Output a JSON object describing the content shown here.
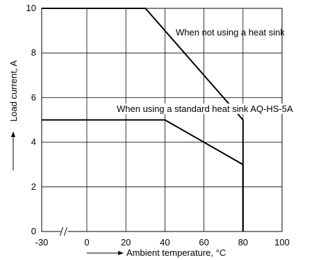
{
  "chart_data": {
    "type": "line",
    "xlabel": "Ambient temperature, °C",
    "ylabel": "Load current, A",
    "x_ticks": [
      -30,
      0,
      20,
      40,
      60,
      80,
      100
    ],
    "x_tick_labels": [
      "-30",
      "0",
      "20",
      "40",
      "60",
      "80",
      "100"
    ],
    "y_ticks": [
      0,
      2,
      4,
      6,
      8,
      10
    ],
    "y_tick_labels": [
      "0",
      "2",
      "4",
      "6",
      "8",
      "10"
    ],
    "xlim": [
      -30,
      100
    ],
    "ylim": [
      0,
      10
    ],
    "x_axis_break": true,
    "grid": true,
    "series": [
      {
        "name": "When not using a heat sink",
        "x": [
          -30,
          30,
          80,
          80
        ],
        "y": [
          10,
          10,
          5,
          0
        ]
      },
      {
        "name": "When using a standard heat sink AQ-HS-5A",
        "x": [
          -30,
          40,
          80,
          80
        ],
        "y": [
          5,
          5,
          3,
          0
        ]
      }
    ]
  }
}
